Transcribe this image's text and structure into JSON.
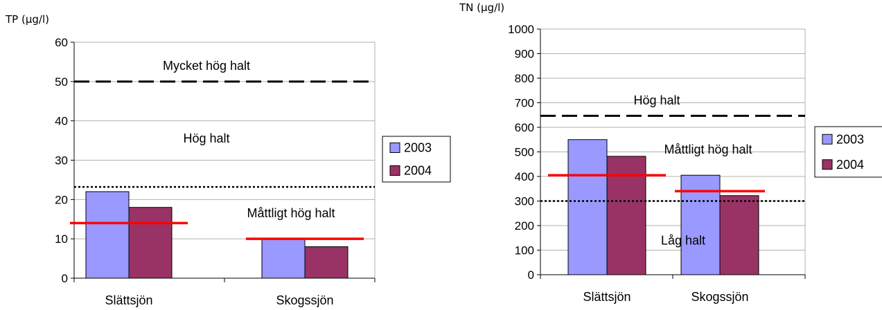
{
  "chart_data": [
    {
      "type": "bar",
      "ylabel": "TP (µg/l)",
      "ylim": [
        0,
        60
      ],
      "yticks": [
        0,
        10,
        20,
        30,
        40,
        50,
        60
      ],
      "categories": [
        "Slättsjön",
        "Skogssjön"
      ],
      "series": [
        {
          "name": "2003",
          "values": [
            22,
            10
          ],
          "color": "#9999ff"
        },
        {
          "name": "2004",
          "values": [
            18,
            8
          ],
          "color": "#993366"
        }
      ],
      "threshold_lines": [
        {
          "value": 50,
          "style": "dashed"
        },
        {
          "value": 23.2,
          "style": "dotted"
        }
      ],
      "reference_lines": [
        {
          "category": "Slättsjön",
          "value": 14,
          "color": "#ff0000"
        },
        {
          "category": "Skogssjön",
          "value": 10,
          "color": "#ff0000"
        }
      ],
      "zone_labels": [
        {
          "text": "Mycket hög halt",
          "value": 54
        },
        {
          "text": "Hög halt",
          "value": 35.5
        },
        {
          "text": "Måttligt hög halt",
          "value": 16.5
        }
      ],
      "grid": true,
      "legend": "right"
    },
    {
      "type": "bar",
      "ylabel": "TN (µg/l)",
      "ylim": [
        0,
        1000
      ],
      "yticks": [
        0,
        100,
        200,
        300,
        400,
        500,
        600,
        700,
        800,
        900,
        1000
      ],
      "categories": [
        "Slättsjön",
        "Skogssjön"
      ],
      "series": [
        {
          "name": "2003",
          "values": [
            550,
            405
          ],
          "color": "#9999ff"
        },
        {
          "name": "2004",
          "values": [
            482,
            322
          ],
          "color": "#993366"
        }
      ],
      "threshold_lines": [
        {
          "value": 647,
          "style": "dashed"
        },
        {
          "value": 300,
          "style": "dotted"
        }
      ],
      "reference_lines": [
        {
          "category": "Slättsjön",
          "value": 405,
          "color": "#ff0000"
        },
        {
          "category": "Skogssjön",
          "value": 340,
          "color": "#ff0000"
        }
      ],
      "zone_labels": [
        {
          "text": "Hög halt",
          "value": 710
        },
        {
          "text": "Måttligt hög halt",
          "value": 510
        },
        {
          "text": "Låg halt",
          "value": 140
        }
      ],
      "grid": true,
      "legend": "right"
    }
  ]
}
